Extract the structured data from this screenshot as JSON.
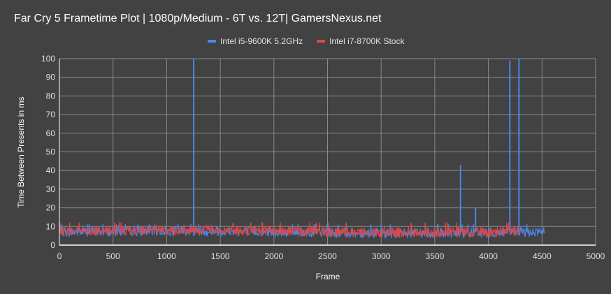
{
  "chart_data": {
    "type": "line",
    "title": "Far Cry 5 Frametime Plot | 1080p/Medium - 6T vs. 12T| GamersNexus.net",
    "xlabel": "Frame",
    "ylabel": "Time Between Presents in ms",
    "xlim": [
      0,
      5000
    ],
    "ylim": [
      0,
      100
    ],
    "xticks": [
      0,
      500,
      1000,
      1500,
      2000,
      2500,
      3000,
      3500,
      4000,
      4500,
      5000
    ],
    "yticks": [
      0,
      10,
      20,
      30,
      40,
      50,
      60,
      70,
      80,
      90,
      100
    ],
    "grid": true,
    "legend_position": "top",
    "series": [
      {
        "name": "Intel i5-9600K 5.2GHz",
        "color": "#4a86e8",
        "frame_count": 4525,
        "baseline_ms": 7,
        "noise_range_ms": [
          4,
          11
        ],
        "spikes": [
          {
            "frame": 1252,
            "ms": 100
          },
          {
            "frame": 3740,
            "ms": 43
          },
          {
            "frame": 3880,
            "ms": 20
          },
          {
            "frame": 4200,
            "ms": 99
          },
          {
            "frame": 4285,
            "ms": 100
          }
        ]
      },
      {
        "name": "Intel i7-8700K Stock",
        "color": "#e04646",
        "frame_count": 4300,
        "baseline_ms": 7.5,
        "noise_range_ms": [
          5,
          12
        ],
        "spikes": []
      }
    ]
  },
  "header": {
    "title": "Far Cry 5 Frametime Plot | 1080p/Medium - 6T vs. 12T| GamersNexus.net"
  },
  "legend": [
    {
      "label": "Intel i5-9600K 5.2GHz",
      "color": "#4a86e8"
    },
    {
      "label": "Intel i7-8700K Stock",
      "color": "#e04646"
    }
  ],
  "axes": {
    "x_title": "Frame",
    "y_title": "Time Between Presents in ms"
  }
}
